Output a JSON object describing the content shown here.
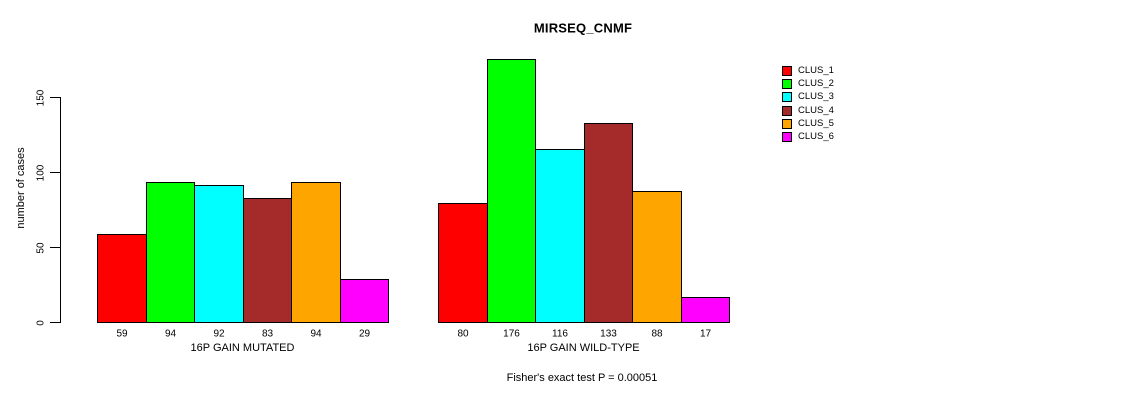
{
  "title": "MIRSEQ_CNMF",
  "y_axis": {
    "label": "number of cases",
    "ticks": [
      0,
      50,
      100,
      150
    ]
  },
  "footer": "Fisher's exact test P = 0.00051",
  "legend": {
    "items": [
      {
        "label": "CLUS_1",
        "color": "#FF0000"
      },
      {
        "label": "CLUS_2",
        "color": "#00FF00"
      },
      {
        "label": "CLUS_3",
        "color": "#00FFFF"
      },
      {
        "label": "CLUS_4",
        "color": "#A52A2A"
      },
      {
        "label": "CLUS_5",
        "color": "#FFA500"
      },
      {
        "label": "CLUS_6",
        "color": "#FF00FF"
      }
    ]
  },
  "chart_data": {
    "type": "bar",
    "title": "MIRSEQ_CNMF",
    "ylabel": "number of cases",
    "ylim": [
      0,
      176
    ],
    "y_ticks": [
      0,
      50,
      100,
      150
    ],
    "grid": false,
    "legend_position": "right",
    "series_labels": [
      "CLUS_1",
      "CLUS_2",
      "CLUS_3",
      "CLUS_4",
      "CLUS_5",
      "CLUS_6"
    ],
    "series_colors": [
      "#FF0000",
      "#00FF00",
      "#00FFFF",
      "#A52A2A",
      "#FFA500",
      "#FF00FF"
    ],
    "groups": [
      {
        "label": "16P GAIN MUTATED",
        "values": [
          59,
          94,
          92,
          83,
          94,
          29
        ]
      },
      {
        "label": "16P GAIN WILD-TYPE",
        "values": [
          80,
          176,
          116,
          133,
          88,
          17
        ]
      }
    ],
    "annotation": "Fisher's exact test P = 0.00051"
  }
}
